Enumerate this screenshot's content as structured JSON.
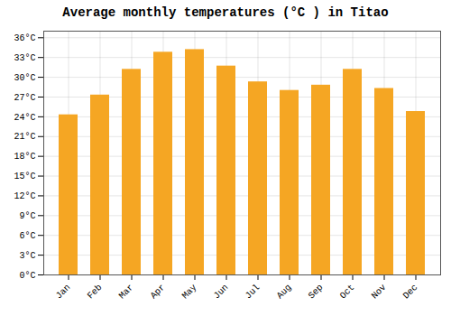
{
  "chart_data": {
    "type": "bar",
    "title": "Average monthly temperatures (°C ) in Titao",
    "categories": [
      "Jan",
      "Feb",
      "Mar",
      "Apr",
      "May",
      "Jun",
      "Jul",
      "Aug",
      "Sep",
      "Oct",
      "Nov",
      "Dec"
    ],
    "values": [
      24.3,
      27.3,
      31.2,
      33.8,
      34.2,
      31.7,
      29.3,
      28.0,
      28.8,
      31.2,
      28.3,
      24.8
    ],
    "color": "#F5A623",
    "ylim": [
      0,
      37
    ],
    "yticks": [
      {
        "value": 0,
        "label": "0°C"
      },
      {
        "value": 3,
        "label": "3°C"
      },
      {
        "value": 6,
        "label": "6°C"
      },
      {
        "value": 9,
        "label": "9°C"
      },
      {
        "value": 12,
        "label": "12°C"
      },
      {
        "value": 15,
        "label": "15°C"
      },
      {
        "value": 18,
        "label": "18°C"
      },
      {
        "value": 21,
        "label": "21°C"
      },
      {
        "value": 24,
        "label": "24°C"
      },
      {
        "value": 27,
        "label": "27°C"
      },
      {
        "value": 30,
        "label": "30°C"
      },
      {
        "value": 33,
        "label": "33°C"
      },
      {
        "value": 36,
        "label": "36°C"
      }
    ],
    "grid": true
  }
}
